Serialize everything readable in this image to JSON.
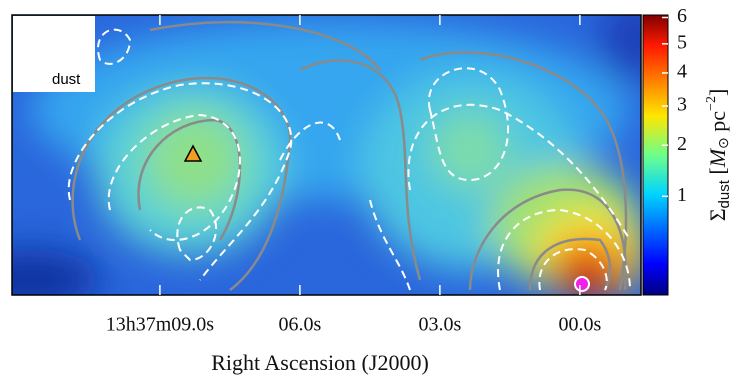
{
  "chart_data": {
    "type": "image",
    "legend": "dust",
    "xlabel": "Right Ascension (J2000)",
    "xlim": [
      12.17,
      -1.31
    ],
    "xticks": [
      {
        "value": 9,
        "label": "13h37m09.0s"
      },
      {
        "value": 6,
        "label": "06.0s"
      },
      {
        "value": 3,
        "label": "03.0s"
      },
      {
        "value": 0,
        "label": "00.0s"
      }
    ],
    "colormap": "jet",
    "color_scale": "sqrt",
    "clim": [
      0.04,
      6.1
    ],
    "cticks": [
      1,
      2,
      3,
      4,
      5,
      6
    ],
    "colorbar_label": {
      "symbol": "Σ",
      "subscript": "dust",
      "open": " [",
      "unit": "M",
      "unit_sub": "⊙",
      "mid": " pc",
      "unit_sup": "−2",
      "close": "]"
    }
  }
}
